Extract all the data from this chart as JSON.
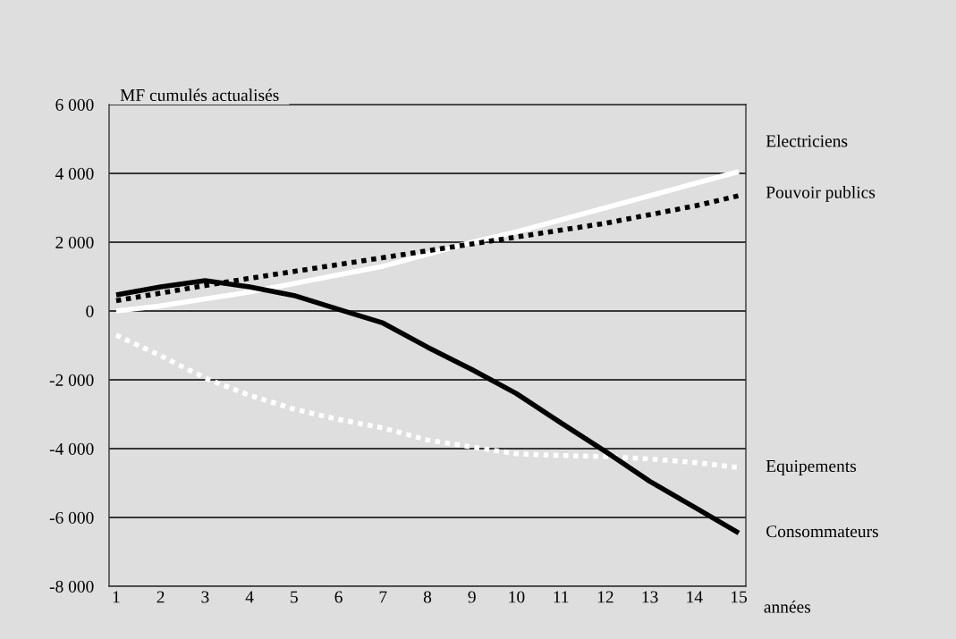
{
  "chart_data": {
    "type": "line",
    "xlabel": "années",
    "ylabel": "MF cumulés actualisés",
    "x": [
      1,
      2,
      3,
      4,
      5,
      6,
      7,
      8,
      9,
      10,
      11,
      12,
      13,
      14,
      15
    ],
    "series": [
      {
        "name": "Electriciens",
        "color": "#ffffff",
        "line_style": "solid",
        "values": [
          0,
          150,
          350,
          550,
          800,
          1050,
          1300,
          1650,
          2000,
          2300,
          2650,
          3000,
          3350,
          3700,
          4050
        ]
      },
      {
        "name": "Pouvoir publics",
        "color": "#000000",
        "line_style": "dotted",
        "values": [
          300,
          520,
          740,
          950,
          1150,
          1350,
          1550,
          1750,
          1950,
          2150,
          2350,
          2550,
          2800,
          3050,
          3350
        ]
      },
      {
        "name": "Equipements",
        "color": "#ffffff",
        "line_style": "dotted",
        "values": [
          -700,
          -1300,
          -1950,
          -2450,
          -2850,
          -3150,
          -3400,
          -3750,
          -3950,
          -4150,
          -4200,
          -4230,
          -4300,
          -4400,
          -4550
        ]
      },
      {
        "name": "Consommateurs",
        "color": "#000000",
        "line_style": "solid",
        "values": [
          470,
          700,
          880,
          700,
          450,
          50,
          -350,
          -1050,
          -1700,
          -2400,
          -3250,
          -4080,
          -4950,
          -5700,
          -6450
        ]
      }
    ],
    "xlim": [
      0.84,
      15.16
    ],
    "xticks": [
      1,
      2,
      3,
      4,
      5,
      6,
      7,
      8,
      9,
      10,
      11,
      12,
      13,
      14,
      15
    ],
    "ylim": [
      -8000,
      6000
    ],
    "yticks": [
      {
        "value": -8000,
        "label": "-8 000"
      },
      {
        "value": -6000,
        "label": "-6 000"
      },
      {
        "value": -4000,
        "label": "-4 000"
      },
      {
        "value": -2000,
        "label": "-2 000"
      },
      {
        "value": 0,
        "label": "0"
      },
      {
        "value": 2000,
        "label": "2 000"
      },
      {
        "value": 4000,
        "label": "4 000"
      },
      {
        "value": 6000,
        "label": "6 000"
      }
    ],
    "grid": "y",
    "legend": false
  }
}
